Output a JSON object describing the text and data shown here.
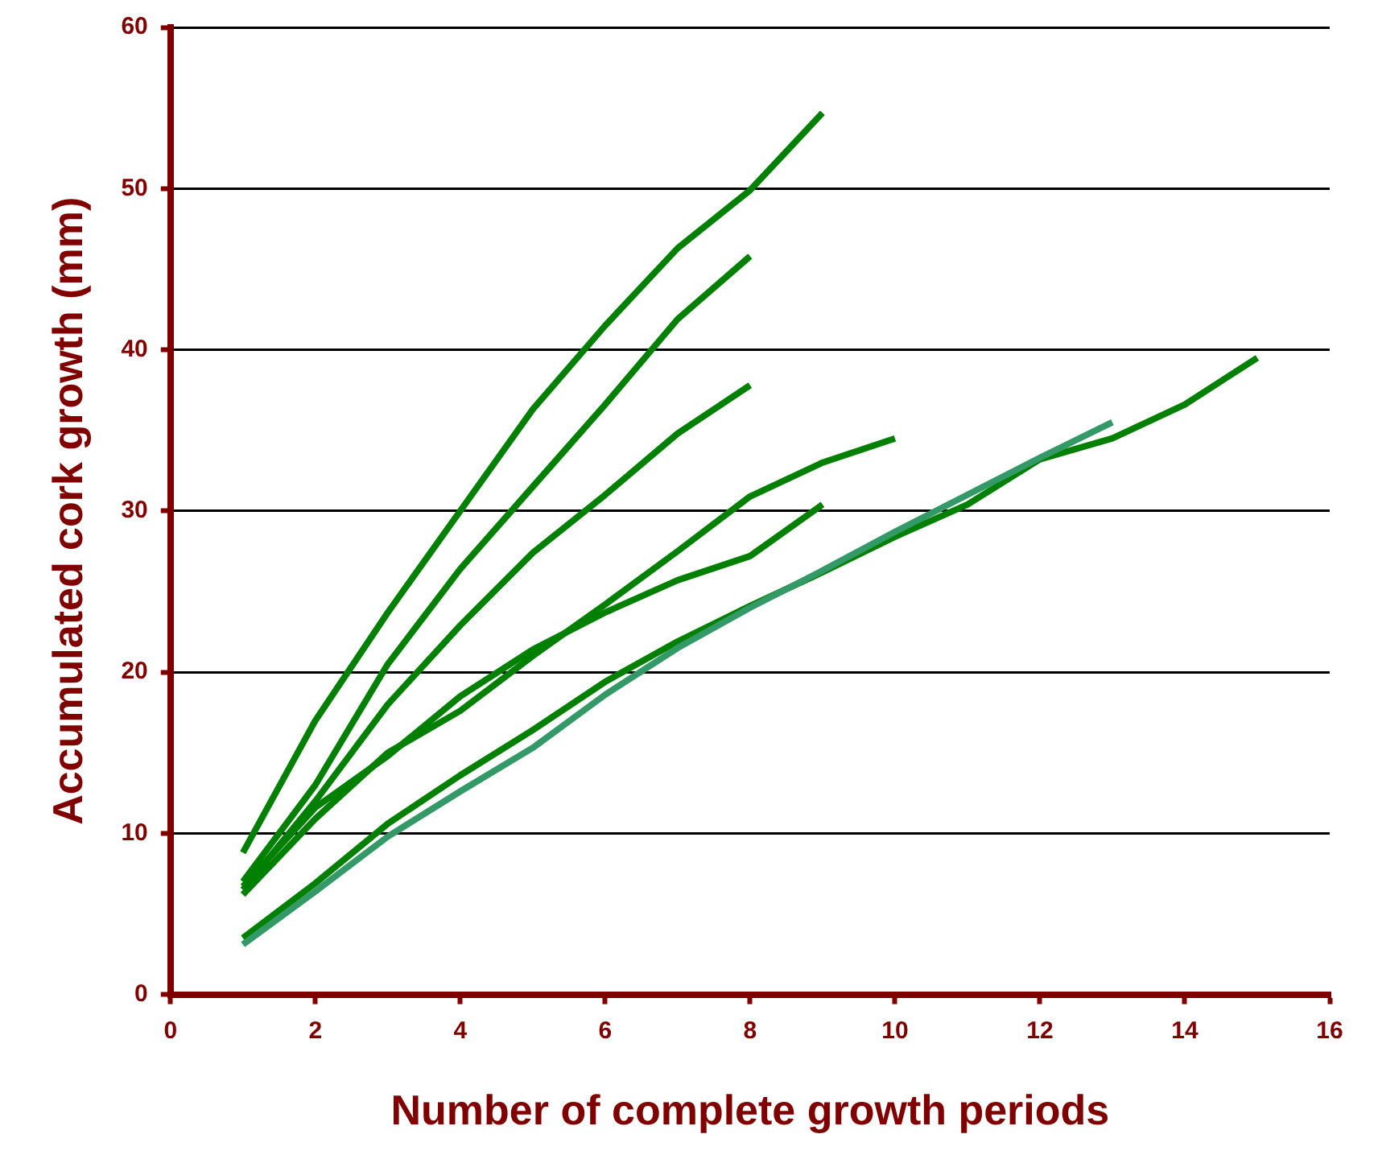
{
  "chart_data": {
    "type": "line",
    "xlabel": "Number of complete growth periods",
    "ylabel": "Accumulated cork growth (mm)",
    "xlim": [
      0,
      16
    ],
    "xticks": [
      0,
      2,
      4,
      6,
      8,
      10,
      12,
      14,
      16
    ],
    "ylim": [
      0,
      60
    ],
    "yticks": [
      0,
      10,
      20,
      30,
      40,
      50,
      60
    ],
    "grid": "y",
    "legend": false,
    "marker": "none",
    "line_style": "solid",
    "series": [
      {
        "color": "#008000",
        "x": [
          1,
          2,
          3,
          4,
          5,
          6,
          7,
          8,
          9
        ],
        "values": [
          8.8,
          17,
          23.7,
          30,
          36.3,
          41.5,
          46.3,
          49.9,
          54.7
        ]
      },
      {
        "color": "#008000",
        "x": [
          1,
          2,
          3,
          4,
          5,
          6,
          7,
          8
        ],
        "values": [
          7,
          13,
          20.5,
          26.4,
          31.5,
          36.6,
          41.9,
          45.8
        ]
      },
      {
        "color": "#008000",
        "x": [
          1,
          2,
          3,
          4,
          5,
          6,
          7,
          8
        ],
        "values": [
          6.5,
          12,
          18,
          22.9,
          27.4,
          31,
          34.8,
          37.8
        ]
      },
      {
        "color": "#008000",
        "x": [
          1,
          2,
          3,
          4,
          5,
          6,
          7,
          8,
          9,
          10
        ],
        "values": [
          6.2,
          10.9,
          15,
          17.6,
          21,
          24.2,
          27.5,
          30.9,
          33,
          34.5
        ]
      },
      {
        "color": "#008000",
        "x": [
          1,
          2,
          3,
          4,
          5,
          6,
          7,
          8,
          9
        ],
        "values": [
          6.7,
          11.6,
          14.8,
          18.5,
          21.4,
          23.7,
          25.7,
          27.2,
          30.4
        ]
      },
      {
        "color": "#339966",
        "x": [
          1,
          2,
          3,
          4,
          5,
          6,
          7,
          8,
          9,
          10,
          11,
          12,
          13
        ],
        "values": [
          3.1,
          6.4,
          9.8,
          12.6,
          15.3,
          18.6,
          21.5,
          24,
          26.3,
          28.7,
          31,
          33.3,
          35.5
        ]
      },
      {
        "color": "#008000",
        "x": [
          1,
          2,
          3,
          4,
          5,
          6,
          7,
          8,
          9,
          10,
          11,
          12,
          13,
          14,
          15
        ],
        "values": [
          3.5,
          6.9,
          10.6,
          13.6,
          16.4,
          19.4,
          21.9,
          24.1,
          26.2,
          28.4,
          30.4,
          33.2,
          34.5,
          36.6,
          39.5
        ]
      }
    ]
  }
}
